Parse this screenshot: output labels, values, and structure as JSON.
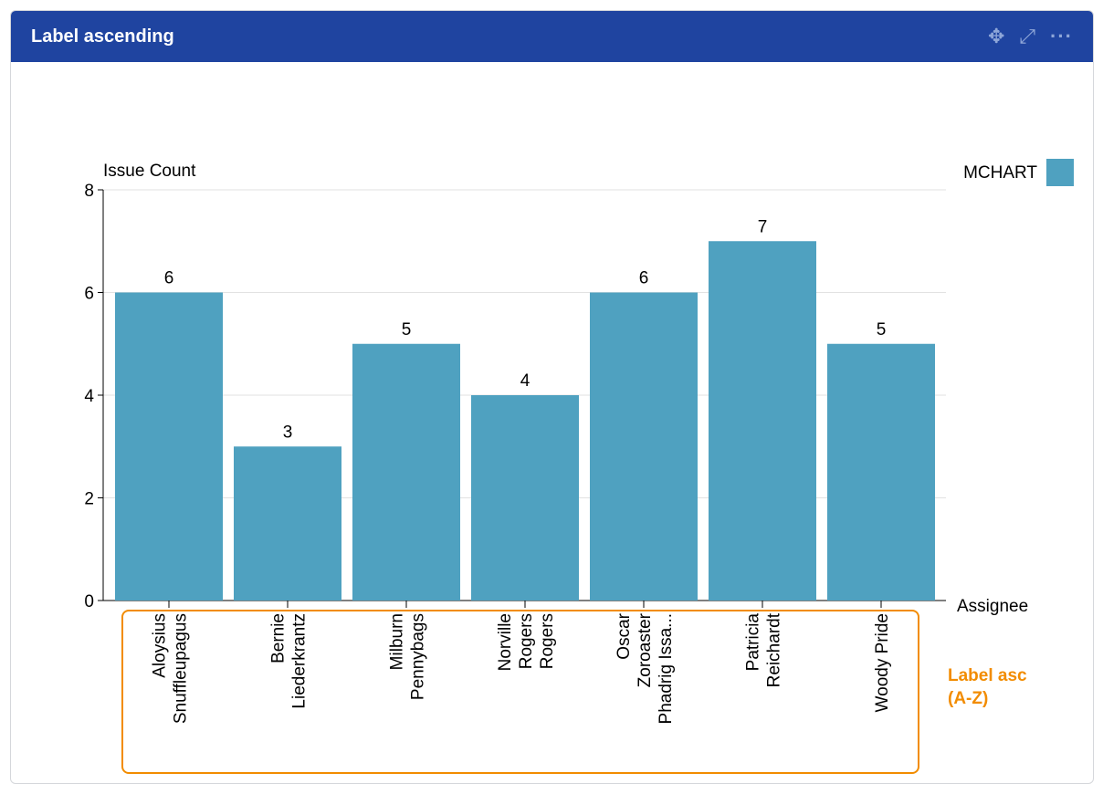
{
  "header": {
    "title": "Label ascending",
    "icons": [
      "move-icon",
      "expand-icon",
      "more-icon"
    ]
  },
  "annotation": {
    "line1": "Label asc",
    "line2": "(A-Z)",
    "color": "#f28c00"
  },
  "chart_data": {
    "type": "bar",
    "ylabel": "Issue Count",
    "xlabel": "Assignee",
    "ylim": [
      0,
      8
    ],
    "yticks": [
      0,
      2,
      4,
      6,
      8
    ],
    "grid": true,
    "legend": {
      "placement": "top-right",
      "entries": [
        {
          "name": "MCHART",
          "color": "#4fa1c0"
        }
      ]
    },
    "categories": [
      [
        "Aloysius",
        "Snuffleupagus"
      ],
      [
        "Bernie",
        "Liederkrantz"
      ],
      [
        "Milburn",
        "Pennybags"
      ],
      [
        "Norville",
        "Rogers",
        "Rogers"
      ],
      [
        "Oscar",
        "Zoroaster",
        "Phadrig Issa..."
      ],
      [
        "Patricia",
        "Reichardt"
      ],
      [
        "Woody Pride"
      ]
    ],
    "series": [
      {
        "name": "MCHART",
        "values": [
          6,
          3,
          5,
          4,
          6,
          7,
          5
        ]
      }
    ]
  }
}
